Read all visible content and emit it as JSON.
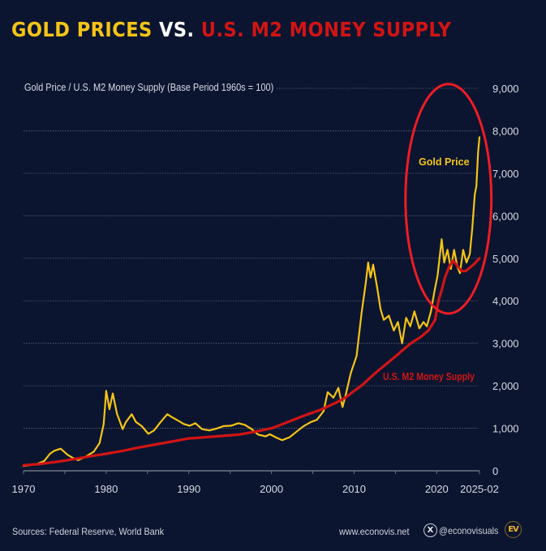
{
  "header": {
    "title_part1": "GOLD PRICES",
    "title_part2": "VS.",
    "title_part3": "U.S. M2 MONEY SUPPLY"
  },
  "colors": {
    "background": "#0b1530",
    "gold": "#f5c417",
    "m2": "#d21414",
    "highlight_circle": "#ee1c25",
    "grid": "#5a6275",
    "axis_text": "#d8dbe2"
  },
  "chart_data": {
    "type": "line",
    "title": "Gold Prices vs. U.S. M2 Money Supply",
    "subtitle": "Gold Price / U.S. M2 Money Supply (Base Period 1960s = 100)",
    "xlabel": "",
    "ylabel": "",
    "xlim": [
      1970,
      2025.17
    ],
    "ylim": [
      0,
      9000
    ],
    "grid": true,
    "y_axis_side": "right",
    "x_ticks": [
      1970,
      1975,
      1980,
      1985,
      1990,
      1995,
      2000,
      2005,
      2010,
      2015,
      2020,
      2025.17
    ],
    "x_tick_labels": [
      {
        "x": 1970,
        "label": "1970"
      },
      {
        "x": 1980,
        "label": "1980"
      },
      {
        "x": 1990,
        "label": "1990"
      },
      {
        "x": 2000,
        "label": "2000"
      },
      {
        "x": 2010,
        "label": "2010"
      },
      {
        "x": 2020,
        "label": "2020"
      },
      {
        "x": 2025.17,
        "label": "2025-02"
      }
    ],
    "y_ticks": [
      0,
      1000,
      2000,
      3000,
      4000,
      5000,
      6000,
      7000,
      8000,
      9000
    ],
    "y_tick_labels": [
      "0",
      "1,000",
      "2,000",
      "3,000",
      "4,000",
      "5,000",
      "6,000",
      "7,000",
      "8,000",
      "9,000"
    ],
    "series": [
      {
        "name": "Gold Price",
        "label": "Gold Price",
        "color": "#f5c417",
        "x": [
          1970,
          1971.5,
          1972.5,
          1973.2,
          1973.7,
          1974.5,
          1975.3,
          1976,
          1976.6,
          1977.5,
          1978.5,
          1979.2,
          1979.7,
          1980.0,
          1980.4,
          1980.8,
          1981.3,
          1982.0,
          1982.4,
          1983.1,
          1983.6,
          1984.3,
          1985.1,
          1985.8,
          1986.6,
          1987.4,
          1987.9,
          1988.7,
          1989.4,
          1990.1,
          1990.8,
          1991.6,
          1992.5,
          1993.3,
          1994.2,
          1995.1,
          1996.0,
          1996.8,
          1997.6,
          1998.4,
          1999.3,
          1999.8,
          2000.6,
          2001.3,
          2002.2,
          2003.1,
          2003.9,
          2004.8,
          2005.5,
          2006.3,
          2006.8,
          2007.5,
          2008.1,
          2008.6,
          2009.0,
          2009.6,
          2010.3,
          2010.9,
          2011.4,
          2011.7,
          2012.0,
          2012.3,
          2012.8,
          2013.2,
          2013.6,
          2014.2,
          2014.8,
          2015.3,
          2015.8,
          2016.3,
          2016.8,
          2017.3,
          2017.9,
          2018.4,
          2018.8,
          2019.3,
          2019.7,
          2020.1,
          2020.6,
          2020.9,
          2021.3,
          2021.7,
          2022.1,
          2022.5,
          2022.8,
          2023.2,
          2023.6,
          2024.0,
          2024.3,
          2024.6,
          2024.8,
          2025.0,
          2025.17
        ],
        "y": [
          110,
          150,
          230,
          400,
          470,
          520,
          380,
          300,
          250,
          330,
          450,
          650,
          1100,
          1880,
          1450,
          1820,
          1350,
          980,
          1150,
          1330,
          1150,
          1050,
          870,
          950,
          1150,
          1330,
          1270,
          1180,
          1100,
          1060,
          1120,
          980,
          950,
          990,
          1050,
          1060,
          1120,
          1080,
          980,
          850,
          810,
          860,
          780,
          720,
          790,
          930,
          1050,
          1150,
          1200,
          1400,
          1850,
          1720,
          1950,
          1500,
          1800,
          2300,
          2700,
          3700,
          4400,
          4900,
          4550,
          4850,
          4300,
          3800,
          3550,
          3650,
          3300,
          3500,
          3000,
          3600,
          3400,
          3750,
          3350,
          3500,
          3400,
          3750,
          4200,
          4600,
          5450,
          4900,
          5200,
          4750,
          5200,
          4800,
          4650,
          5200,
          4900,
          5100,
          5700,
          6500,
          6700,
          7500,
          7850
        ]
      },
      {
        "name": "U.S. M2 Money Supply",
        "label": "U.S. M2 Money Supply",
        "color": "#d21414",
        "x": [
          1970,
          1972,
          1974,
          1976,
          1978,
          1980,
          1982,
          1984,
          1986,
          1988,
          1990,
          1992,
          1994,
          1996,
          1998,
          2000,
          2002,
          2004,
          2006,
          2008,
          2009,
          2010,
          2011,
          2012,
          2013,
          2014,
          2015,
          2016,
          2017,
          2018,
          2019,
          2019.8,
          2020.2,
          2020.6,
          2021.0,
          2021.5,
          2022.0,
          2022.5,
          2023.0,
          2023.5,
          2024.0,
          2024.5,
          2025.17
        ],
        "y": [
          130,
          160,
          210,
          270,
          340,
          400,
          470,
          550,
          620,
          690,
          760,
          790,
          820,
          850,
          920,
          1000,
          1150,
          1300,
          1440,
          1620,
          1730,
          1880,
          2020,
          2200,
          2370,
          2530,
          2690,
          2860,
          3020,
          3140,
          3300,
          3550,
          4000,
          4250,
          4550,
          4800,
          4950,
          4820,
          4700,
          4700,
          4780,
          4860,
          5000
        ]
      }
    ],
    "annotations": [
      {
        "text": "Gold Price",
        "near": "gold series, 2020s",
        "color": "#f5c417"
      },
      {
        "text": "U.S. M2 Money Supply",
        "near": "m2 series, 2010s",
        "color": "#d21414"
      },
      {
        "text": "",
        "type": "highlight-ellipse",
        "x_range": [
          2017,
          2027
        ],
        "y_range": [
          3700,
          9100
        ],
        "color": "#ee1c25"
      }
    ]
  },
  "footer": {
    "sources": "Sources: Federal Reserve, World Bank",
    "website": "www.econovis.net",
    "x_icon": "X",
    "handle": "@econovisuals",
    "logo": "EV"
  }
}
